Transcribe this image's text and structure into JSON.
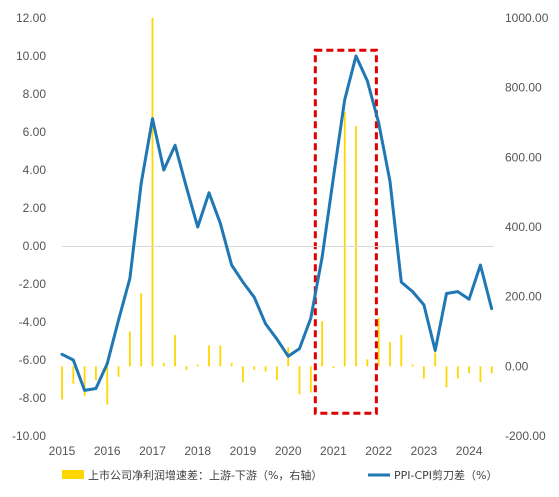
{
  "chart_data": {
    "type": "bar+line",
    "title": "",
    "legend_position": "bottom",
    "grid": false,
    "x_ticks": [
      "2015",
      "2016",
      "2017",
      "2018",
      "2019",
      "2020",
      "2021",
      "2022",
      "2023",
      "2024"
    ],
    "x_range": [
      2015.0,
      2024.55
    ],
    "y_left": {
      "range": [
        -10,
        12
      ],
      "ticks": [
        "-10.00",
        "-8.00",
        "-6.00",
        "-4.00",
        "-2.00",
        "0.00",
        "2.00",
        "4.00",
        "6.00",
        "8.00",
        "10.00",
        "12.00"
      ]
    },
    "y_right": {
      "range": [
        -200,
        1000
      ],
      "ticks": [
        "-200.00",
        "0.00",
        "200.00",
        "400.00",
        "600.00",
        "800.00",
        "1000.00"
      ]
    },
    "series": [
      {
        "name": "上市公司净利润增速差：上游-下游（%，右轴）",
        "type": "bar",
        "axis": "right",
        "color": "#FFD700",
        "x": [
          2015.0,
          2015.25,
          2015.5,
          2015.75,
          2016.0,
          2016.25,
          2016.5,
          2016.75,
          2017.0,
          2017.25,
          2017.5,
          2017.75,
          2018.0,
          2018.25,
          2018.5,
          2018.75,
          2019.0,
          2019.25,
          2019.5,
          2019.75,
          2020.0,
          2020.25,
          2020.5,
          2020.75,
          2021.0,
          2021.25,
          2021.5,
          2021.75,
          2022.0,
          2022.25,
          2022.5,
          2022.75,
          2023.0,
          2023.25,
          2023.5,
          2023.75,
          2024.0,
          2024.25,
          2024.5
        ],
        "values": [
          -95,
          -50,
          -85,
          -40,
          -110,
          -30,
          100,
          210,
          1000,
          10,
          90,
          -10,
          5,
          60,
          60,
          10,
          -45,
          -10,
          -15,
          -40,
          55,
          -80,
          -75,
          130,
          -5,
          730,
          690,
          20,
          140,
          70,
          90,
          5,
          -35,
          40,
          -60,
          -35,
          -20,
          -45,
          -20
        ]
      },
      {
        "name": "PPI-CPI剪刀差（%）",
        "type": "line",
        "axis": "left",
        "color": "#1F77B4",
        "x": [
          2015.0,
          2015.25,
          2015.5,
          2015.75,
          2016.0,
          2016.25,
          2016.5,
          2016.75,
          2017.0,
          2017.25,
          2017.5,
          2017.75,
          2018.0,
          2018.25,
          2018.5,
          2018.75,
          2019.0,
          2019.25,
          2019.5,
          2019.75,
          2020.0,
          2020.25,
          2020.5,
          2020.75,
          2021.0,
          2021.25,
          2021.5,
          2021.75,
          2022.0,
          2022.25,
          2022.5,
          2022.75,
          2023.0,
          2023.25,
          2023.5,
          2023.75,
          2024.0,
          2024.25,
          2024.5
        ],
        "values": [
          -5.7,
          -6.0,
          -7.6,
          -7.5,
          -6.2,
          -3.9,
          -1.7,
          3.3,
          6.7,
          4.0,
          5.3,
          3.1,
          1.0,
          2.8,
          1.2,
          -1.0,
          -1.9,
          -2.7,
          -4.1,
          -4.9,
          -5.8,
          -5.4,
          -3.8,
          -0.6,
          3.6,
          7.7,
          10.0,
          8.7,
          6.5,
          3.4,
          -1.9,
          -2.4,
          -3.1,
          -5.5,
          -2.5,
          -2.4,
          -2.8,
          -1.0,
          -3.3
        ]
      }
    ],
    "annotations": [
      {
        "type": "dashed-rectangle",
        "color": "#E00000",
        "x_from": 2020.6,
        "x_to": 2021.95,
        "y_from": -8.8,
        "y_to": 10.3
      }
    ]
  }
}
